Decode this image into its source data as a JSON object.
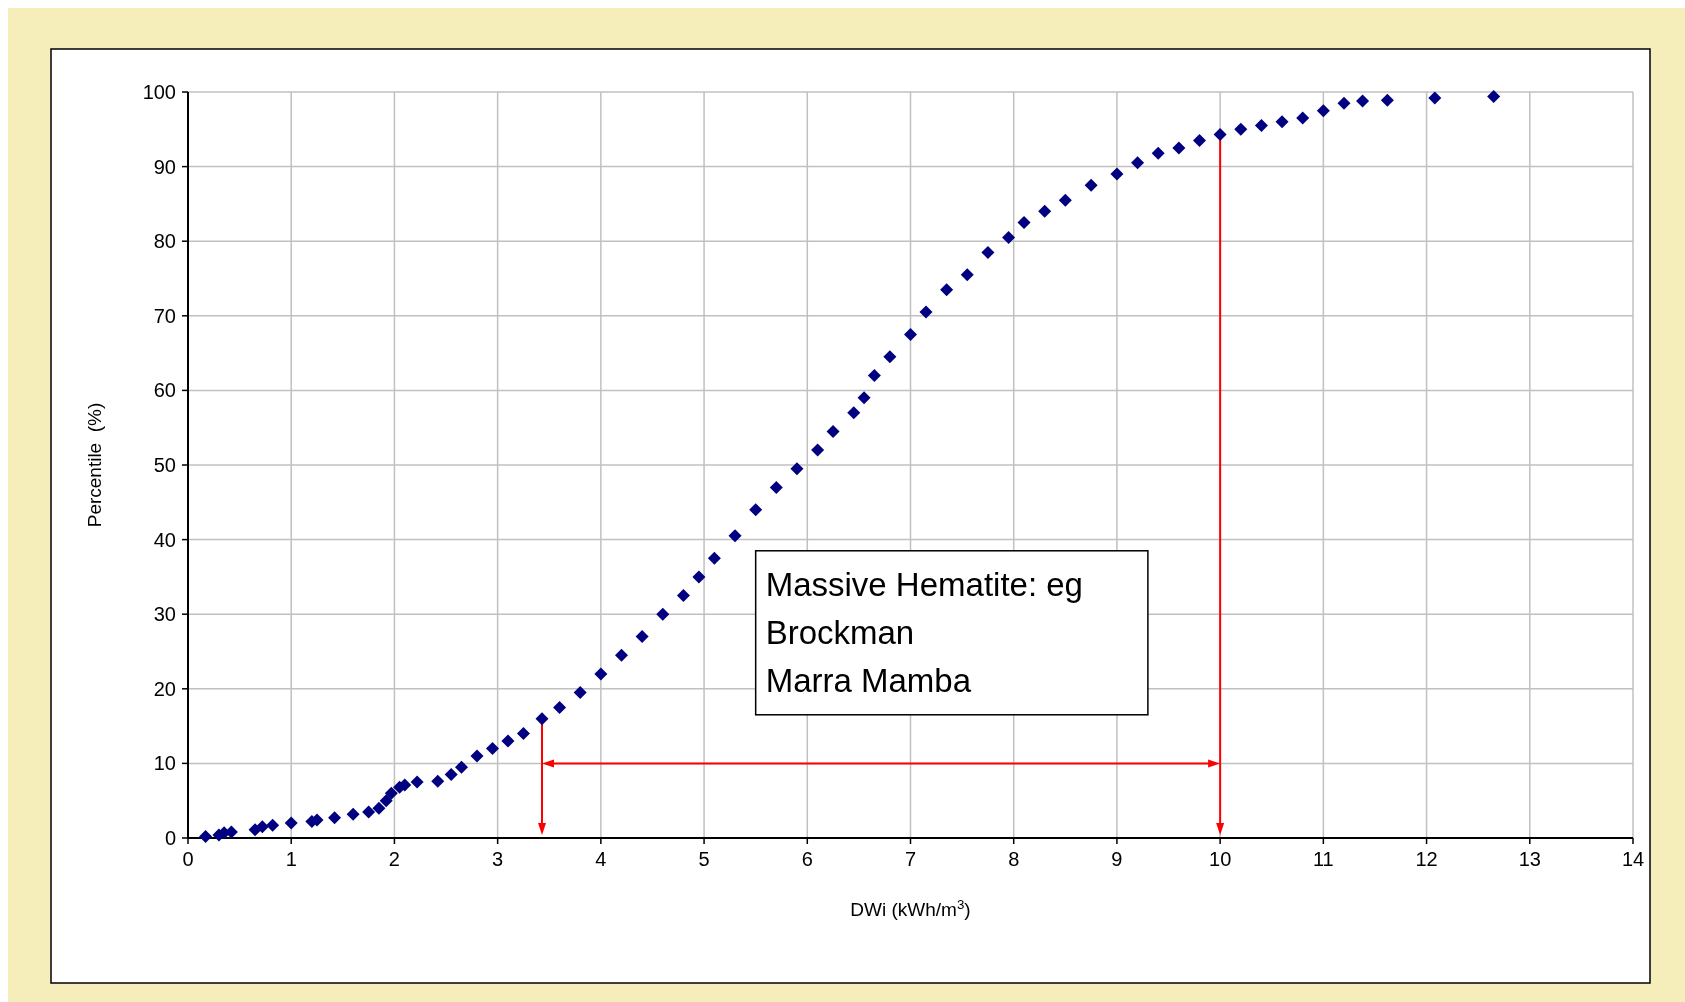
{
  "chart_data": {
    "type": "scatter",
    "xlabel": "DWi (kWh/m$^{3}$)",
    "ylabel": "Percentile  (%)",
    "xlim": [
      0,
      14
    ],
    "xticks": [
      0,
      1,
      2,
      3,
      4,
      5,
      6,
      7,
      8,
      9,
      10,
      11,
      12,
      13,
      14
    ],
    "ylim": [
      0,
      100
    ],
    "yticks": [
      0,
      10,
      20,
      30,
      40,
      50,
      60,
      70,
      80,
      90,
      100
    ],
    "grid": true,
    "marker": "diamond",
    "series": [
      {
        "color": "#000080",
        "x": [
          0.17,
          0.3,
          0.35,
          0.42,
          0.65,
          0.72,
          0.82,
          1.0,
          1.2,
          1.25,
          1.42,
          1.6,
          1.75,
          1.85,
          1.92,
          1.97,
          2.05,
          2.1,
          2.22,
          2.42,
          2.55,
          2.65,
          2.8,
          2.95,
          3.1,
          3.25,
          3.43,
          3.6,
          3.8,
          4.0,
          4.2,
          4.4,
          4.6,
          4.8,
          4.95,
          5.1,
          5.3,
          5.5,
          5.7,
          5.9,
          6.1,
          6.25,
          6.45,
          6.55,
          6.65,
          6.8,
          7.0,
          7.15,
          7.35,
          7.55,
          7.75,
          7.95,
          8.1,
          8.3,
          8.5,
          8.75,
          9.0,
          9.2,
          9.4,
          9.6,
          9.8,
          10.0,
          10.2,
          10.4,
          10.6,
          10.8,
          11.0,
          11.2,
          11.38,
          11.62,
          12.08,
          12.65
        ],
        "values": [
          0.2,
          0.4,
          0.7,
          0.8,
          1.1,
          1.5,
          1.7,
          2.0,
          2.2,
          2.4,
          2.7,
          3.2,
          3.5,
          4.0,
          5.0,
          6.0,
          6.8,
          7.1,
          7.5,
          7.6,
          8.5,
          9.5,
          11,
          12,
          13,
          14,
          16,
          17.5,
          19.5,
          22,
          24.5,
          27,
          30,
          32.5,
          35,
          37.5,
          40.5,
          44,
          47,
          49.5,
          52,
          54.5,
          57,
          59,
          62,
          64.5,
          67.5,
          70.5,
          73.5,
          75.5,
          78.5,
          80.5,
          82.5,
          84,
          85.5,
          87.5,
          89,
          90.5,
          91.8,
          92.5,
          93.5,
          94.3,
          95.0,
          95.5,
          96.0,
          96.5,
          97.5,
          98.5,
          98.8,
          98.9,
          99.2,
          99.4
        ]
      }
    ],
    "ref_lines": [
      {
        "axis": "x",
        "value": 3.43,
        "color": "#ff0000"
      },
      {
        "axis": "x",
        "value": 10,
        "color": "#ff0000"
      },
      {
        "axis": "y",
        "value": 10,
        "color": "#ff0000"
      }
    ],
    "annotations": [
      "Massive Hematite: eg",
      "Brockman",
      "Marra Mamba"
    ]
  }
}
